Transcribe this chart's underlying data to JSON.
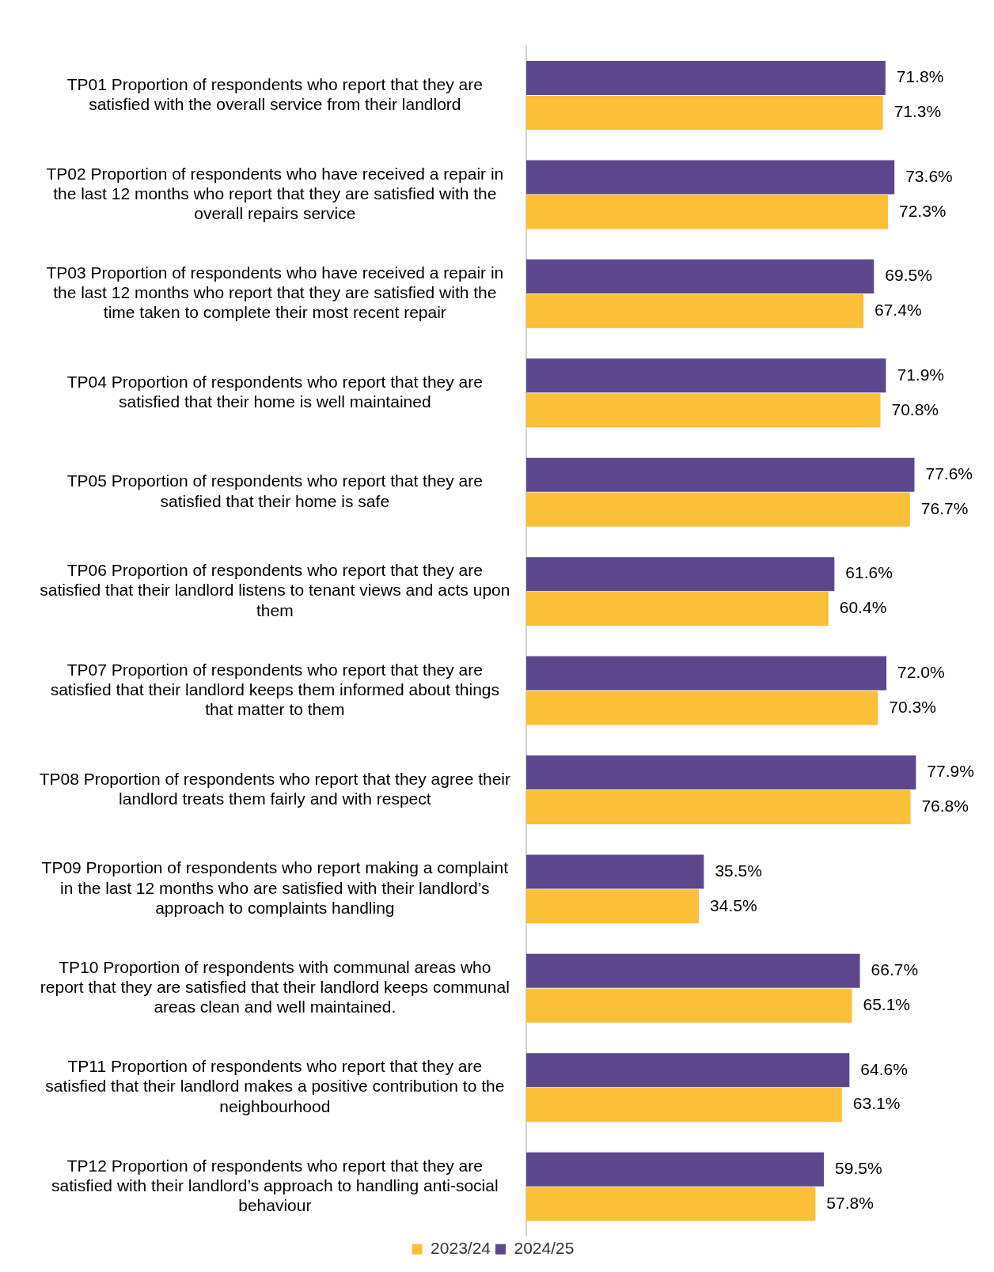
{
  "chart_data": {
    "type": "bar",
    "orientation": "horizontal",
    "legend": "bottom",
    "categories": [
      "TP01 Proportion of respondents who report that they are satisfied with the overall service from their landlord",
      "TP02 Proportion of respondents who have received a repair in the last 12 months who report that they are satisfied with the overall repairs service",
      "TP03 Proportion of respondents who have received a repair in the last 12 months who report that they are satisfied with the time taken to complete their most recent repair",
      "TP04 Proportion of respondents who report that they are satisfied that their home is well maintained",
      "TP05 Proportion of respondents who report that they are satisfied that their home is safe",
      "TP06 Proportion of respondents who report that they are satisfied that their landlord listens to tenant views and acts upon them",
      "TP07 Proportion of respondents who report that they are satisfied that their landlord keeps them informed about things that matter to them",
      "TP08 Proportion of respondents who report that they agree their landlord treats them fairly and with respect",
      "TP09 Proportion of respondents who report making a complaint in the last 12 months who are satisfied with their landlord’s approach to complaints handling",
      "TP10 Proportion of respondents with communal areas who report that they are satisfied that their landlord keeps communal areas clean and well maintained.",
      "TP11 Proportion of respondents who report that they are satisfied that their landlord makes a positive contribution to the neighbourhood",
      "TP12 Proportion of respondents who report that they are satisfied with their landlord’s approach to handling anti-social behaviour"
    ],
    "series": [
      {
        "name": "2024/25",
        "color": "#5c468c",
        "values": [
          71.8,
          73.6,
          69.5,
          71.9,
          77.6,
          61.6,
          72.0,
          77.9,
          35.5,
          66.7,
          64.6,
          59.5
        ],
        "value_labels": [
          "71.8%",
          "73.6%",
          "69.5%",
          "71.9%",
          "77.6%",
          "61.6%",
          "72.0%",
          "77.9%",
          "35.5%",
          "66.7%",
          "64.6%",
          "59.5%"
        ]
      },
      {
        "name": "2023/24",
        "color": "#fbbf38",
        "values": [
          71.3,
          72.3,
          67.4,
          70.8,
          76.7,
          60.4,
          70.3,
          76.8,
          34.5,
          65.1,
          63.1,
          57.8
        ],
        "value_labels": [
          "71.3%",
          "72.3%",
          "67.4%",
          "70.8%",
          "76.7%",
          "60.4%",
          "70.3%",
          "76.8%",
          "34.5%",
          "65.1%",
          "63.1%",
          "57.8%"
        ]
      }
    ]
  }
}
